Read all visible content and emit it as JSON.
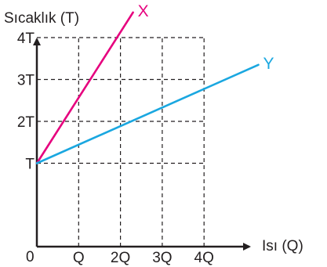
{
  "chart_data": {
    "type": "line",
    "ylabel": "Sıcaklık (T)",
    "xlabel": "Isı (Q)",
    "origin_label": "0",
    "x_ticks": [
      {
        "value": 1,
        "label": "Q"
      },
      {
        "value": 2,
        "label": "2Q"
      },
      {
        "value": 3,
        "label": "3Q"
      },
      {
        "value": 4,
        "label": "4Q"
      }
    ],
    "y_ticks": [
      {
        "value": 1,
        "label": "T"
      },
      {
        "value": 2,
        "label": "2T"
      },
      {
        "value": 3,
        "label": "3T"
      },
      {
        "value": 4,
        "label": "4T"
      }
    ],
    "grid": true,
    "series": [
      {
        "name": "X",
        "color": "#e6007e",
        "points": [
          [
            0,
            1
          ],
          [
            2.3,
            4.6
          ]
        ]
      },
      {
        "name": "Y",
        "color": "#1aa7e0",
        "points": [
          [
            0,
            1
          ],
          [
            5.3,
            3.35
          ]
        ]
      }
    ]
  }
}
